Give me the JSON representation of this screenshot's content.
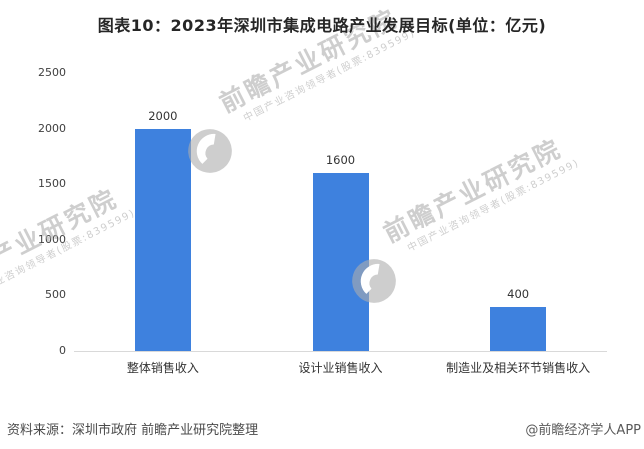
{
  "title": "图表10：2023年深圳市集成电路产业发展目标(单位：亿元)",
  "chart_data": {
    "type": "bar",
    "title": "图表10：2023年深圳市集成电路产业发展目标(单位：亿元)",
    "unit": "亿元",
    "categories": [
      "整体销售收入",
      "设计业销售收入",
      "制造业及相关环节销售收入"
    ],
    "values": [
      2000,
      1600,
      400
    ],
    "xlabel": "",
    "ylabel": "",
    "ylim": [
      0,
      2500
    ],
    "yticks": [
      0,
      500,
      1000,
      1500,
      2000,
      2500
    ],
    "grid": false,
    "legend": false,
    "bar_color": "#3E81DE",
    "axis_line_color": "#D9D9D9"
  },
  "watermark": {
    "brand": "前瞻产业研究院",
    "slogan": "中国产业咨询领导者(股票:839599)"
  },
  "footer": {
    "source": "资料来源：深圳市政府 前瞻产业研究院整理",
    "credit": "@前瞻经济学人APP"
  }
}
